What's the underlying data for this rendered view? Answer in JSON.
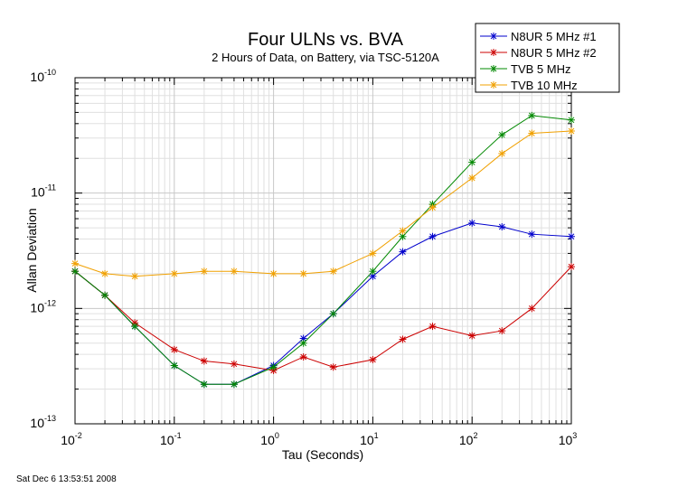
{
  "chart_data": {
    "type": "line",
    "title": "Four ULNs vs. BVA",
    "subtitle": "2 Hours of Data, on Battery, via TSC-5120A",
    "xlabel": "Tau (Seconds)",
    "ylabel": "Allan Deviation",
    "xscale": "log",
    "yscale": "log",
    "xlim": [
      0.01,
      1000
    ],
    "ylim": [
      1e-13,
      1e-10
    ],
    "grid": true,
    "legend_position": "top-right",
    "x": [
      0.01,
      0.02,
      0.04,
      0.1,
      0.2,
      0.4,
      1,
      2,
      4,
      10,
      20,
      40,
      100,
      200,
      400,
      1000
    ],
    "series": [
      {
        "name": "N8UR 5 MHz #1",
        "color": "#0000cc",
        "values": [
          2.1e-12,
          1.3e-12,
          7e-13,
          3.2e-13,
          2.2e-13,
          2.2e-13,
          3.2e-13,
          5.5e-13,
          9e-13,
          1.9e-12,
          3.1e-12,
          4.2e-12,
          5.5e-12,
          5.1e-12,
          4.4e-12,
          4.2e-12
        ]
      },
      {
        "name": "N8UR 5 MHz #2",
        "color": "#cc0000",
        "values": [
          2.1e-12,
          1.3e-12,
          7.5e-13,
          4.4e-13,
          3.5e-13,
          3.3e-13,
          2.9e-13,
          3.8e-13,
          3.1e-13,
          3.6e-13,
          5.4e-13,
          7e-13,
          5.8e-13,
          6.4e-13,
          1e-12,
          2.3e-12
        ]
      },
      {
        "name": "TVB 5 MHz",
        "color": "#008800",
        "values": [
          2.1e-12,
          1.3e-12,
          7e-13,
          3.2e-13,
          2.2e-13,
          2.2e-13,
          3.1e-13,
          5e-13,
          9e-13,
          2.1e-12,
          4.2e-12,
          8e-12,
          1.85e-11,
          3.2e-11,
          4.7e-11,
          4.3e-11
        ]
      },
      {
        "name": "TVB 10 MHz",
        "color": "#f0a000",
        "values": [
          2.45e-12,
          2e-12,
          1.9e-12,
          2e-12,
          2.1e-12,
          2.1e-12,
          2e-12,
          2e-12,
          2.1e-12,
          3e-12,
          4.7e-12,
          7.5e-12,
          1.35e-11,
          2.2e-11,
          3.3e-11,
          3.45e-11
        ]
      }
    ],
    "x_ticks": [
      {
        "base": "10",
        "exp": "-2"
      },
      {
        "base": "10",
        "exp": "-1"
      },
      {
        "base": "10",
        "exp": "0"
      },
      {
        "base": "10",
        "exp": "1"
      },
      {
        "base": "10",
        "exp": "2"
      },
      {
        "base": "10",
        "exp": "3"
      }
    ],
    "y_ticks": [
      {
        "base": "10",
        "exp": "-13"
      },
      {
        "base": "10",
        "exp": "-12"
      },
      {
        "base": "10",
        "exp": "-11"
      },
      {
        "base": "10",
        "exp": "-10"
      }
    ]
  },
  "timestamp": "Sat Dec  6 13:53:51 2008"
}
